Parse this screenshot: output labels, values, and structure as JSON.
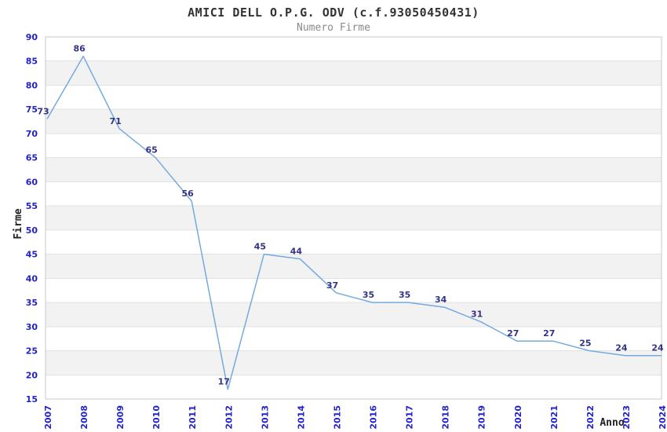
{
  "chart_data": {
    "type": "line",
    "title": "AMICI DELL O.P.G. ODV (c.f.93050450431)",
    "subtitle": "Numero Firme",
    "xlabel": "Anno",
    "ylabel": "Firme",
    "categories": [
      "2007",
      "2008",
      "2009",
      "2010",
      "2011",
      "2012",
      "2013",
      "2014",
      "2015",
      "2016",
      "2017",
      "2018",
      "2019",
      "2020",
      "2021",
      "2022",
      "2023",
      "2024"
    ],
    "series": [
      {
        "name": "Numero Firme",
        "values": [
          73,
          86,
          71,
          65,
          56,
          17,
          45,
          44,
          37,
          35,
          35,
          34,
          31,
          27,
          27,
          25,
          24,
          24
        ]
      }
    ],
    "ylim": [
      15,
      90
    ],
    "ytick_step": 5,
    "grid": true,
    "legend_position": "none",
    "data_labels": true,
    "x_labels_rotated_degrees": 90,
    "alternating_bands": true,
    "colors": {
      "line": "#74aadf",
      "tick_label": "#2222cc",
      "data_label": "#333388",
      "band": "#f2f2f2",
      "gridline": "#e2e2e2",
      "frame": "#c8c8c8",
      "title": "#333333",
      "subtitle": "#8a8a8a",
      "axis_title": "#222222"
    }
  }
}
